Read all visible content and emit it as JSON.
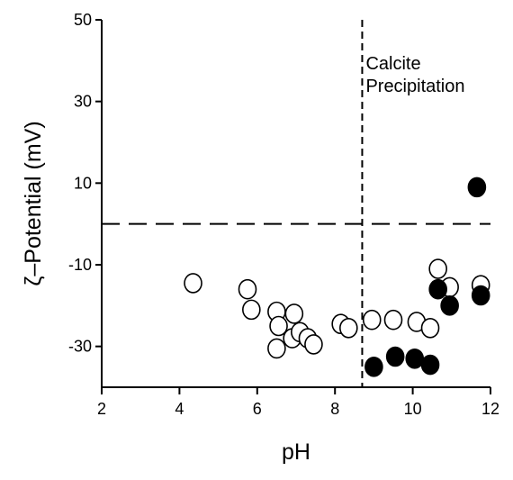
{
  "chart_data": {
    "type": "scatter",
    "title": "",
    "xlabel": "pH",
    "ylabel": "ζ–Potential (mV)",
    "xlim": [
      2,
      12
    ],
    "ylim": [
      -40,
      50
    ],
    "xticks": [
      2,
      4,
      6,
      8,
      10,
      12
    ],
    "yticks": [
      50,
      30,
      10,
      -10,
      -30
    ],
    "xtick_labels": [
      "2",
      "4",
      "6",
      "8",
      "10",
      "12"
    ],
    "ytick_labels": [
      "50",
      "30",
      "10",
      "-10",
      "-30"
    ],
    "annotation": [
      "Calcite",
      "Precipitation"
    ],
    "vertical_line_x": 8.7,
    "horizontal_line_y": 0,
    "grid": false,
    "series": [
      {
        "marker": "open-circle",
        "points": [
          {
            "x": 4.35,
            "y": -14.5
          },
          {
            "x": 5.75,
            "y": -16.0
          },
          {
            "x": 5.85,
            "y": -21.0
          },
          {
            "x": 6.5,
            "y": -21.5
          },
          {
            "x": 6.55,
            "y": -25.0
          },
          {
            "x": 6.5,
            "y": -30.5
          },
          {
            "x": 6.9,
            "y": -28.0
          },
          {
            "x": 6.95,
            "y": -22.0
          },
          {
            "x": 7.1,
            "y": -26.5
          },
          {
            "x": 7.3,
            "y": -28.0
          },
          {
            "x": 7.45,
            "y": -29.5
          },
          {
            "x": 8.15,
            "y": -24.5
          },
          {
            "x": 8.35,
            "y": -25.5
          },
          {
            "x": 8.95,
            "y": -23.5
          },
          {
            "x": 9.5,
            "y": -23.5
          },
          {
            "x": 10.1,
            "y": -24.0
          },
          {
            "x": 10.45,
            "y": -25.5
          },
          {
            "x": 10.65,
            "y": -11.0
          },
          {
            "x": 10.95,
            "y": -15.5
          },
          {
            "x": 11.75,
            "y": -15.0
          }
        ]
      },
      {
        "marker": "filled-circle",
        "points": [
          {
            "x": 9.0,
            "y": -35.0
          },
          {
            "x": 9.55,
            "y": -32.5
          },
          {
            "x": 10.05,
            "y": -33.0
          },
          {
            "x": 10.45,
            "y": -34.5
          },
          {
            "x": 10.65,
            "y": -16.0
          },
          {
            "x": 10.95,
            "y": -20.0
          },
          {
            "x": 11.65,
            "y": 9.0
          },
          {
            "x": 11.75,
            "y": -17.5
          }
        ]
      }
    ]
  }
}
